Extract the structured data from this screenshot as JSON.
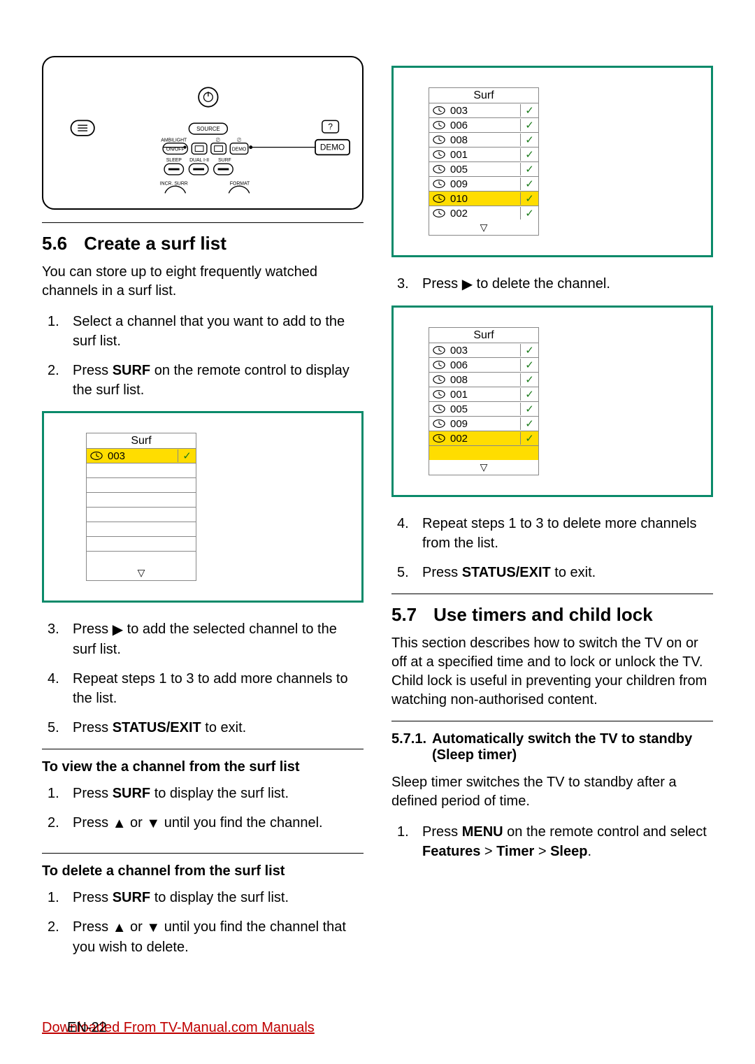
{
  "remote": {
    "labels": {
      "source": "SOURCE",
      "demo_big": "DEMO",
      "ambilight": "AMBILIGHT",
      "onoff": "ON/OFF",
      "demo": "DEMO",
      "sleep": "SLEEP",
      "dual": "DUAL I-II",
      "surf": "SURF",
      "incr": "INCR. SURR",
      "format": "FORMAT"
    }
  },
  "left": {
    "s56_num": "5.6",
    "s56_title": "Create a surf list",
    "s56_intro": "You can store up to eight frequently watched channels in a surf list.",
    "s56_steps1": {
      "1": "Select a channel that you want to add to the surf list.",
      "2a": "Press ",
      "2b": "SURF",
      "2c": " on the remote control to display the surf list."
    },
    "s56_steps2": {
      "3a": "Press ",
      "3b": " to add the selected channel to the surf list.",
      "4": "Repeat steps 1 to 3 to add more channels to the list.",
      "5a": "Press ",
      "5b": "STATUS/EXIT",
      "5c": " to exit."
    },
    "view_heading": "To view the a channel from the surf list",
    "view_steps": {
      "1a": "Press ",
      "1b": "SURF",
      "1c": " to display the surf list.",
      "2a": "Press ",
      "2b": " or ",
      "2c": " until you find the channel."
    },
    "delete_heading": "To delete a channel from the surf list",
    "delete_steps": {
      "1a": "Press ",
      "1b": "SURF",
      "1c": " to display the surf list.",
      "2a": "Press ",
      "2b": " or ",
      "2c": " until you find the channel that you wish to delete."
    },
    "surf_figure1": {
      "header": "Surf",
      "rows": [
        {
          "ch": "003",
          "check": true,
          "highlight": true
        },
        {
          "empty": true
        },
        {
          "empty": true
        },
        {
          "empty": true
        },
        {
          "empty": true
        },
        {
          "empty": true
        },
        {
          "empty": true
        },
        {
          "empty": true
        }
      ]
    }
  },
  "right": {
    "surf_figure2": {
      "header": "Surf",
      "rows": [
        {
          "ch": "003",
          "check": true
        },
        {
          "ch": "006",
          "check": true
        },
        {
          "ch": "008",
          "check": true
        },
        {
          "ch": "001",
          "check": true
        },
        {
          "ch": "005",
          "check": true
        },
        {
          "ch": "009",
          "check": true
        },
        {
          "ch": "010",
          "check": true,
          "highlight": true
        },
        {
          "ch": "002",
          "check": true
        }
      ]
    },
    "step3a": "Press ",
    "step3b": " to delete the channel.",
    "surf_figure3": {
      "header": "Surf",
      "rows": [
        {
          "ch": "003",
          "check": true
        },
        {
          "ch": "006",
          "check": true
        },
        {
          "ch": "008",
          "check": true
        },
        {
          "ch": "001",
          "check": true
        },
        {
          "ch": "005",
          "check": true
        },
        {
          "ch": "009",
          "check": true
        },
        {
          "ch": "002",
          "check": true,
          "highlight": true
        },
        {
          "empty": true,
          "highlight": true
        }
      ]
    },
    "step4": "Repeat steps 1 to 3 to delete more channels from the list.",
    "step5a": "Press ",
    "step5b": "STATUS/EXIT",
    "step5c": " to exit.",
    "s57_num": "5.7",
    "s57_title": "Use timers and child lock",
    "s57_intro": "This section describes how to switch the TV on or off at a specified time and to lock or unlock the TV. Child lock is useful in preventing your children from watching non-authorised content.",
    "s571_num": "5.7.1.",
    "s571_title": "Automatically switch the TV to standby (Sleep timer)",
    "s571_intro": "Sleep timer switches the TV to standby after a defined period of time.",
    "s571_step1a": "Press ",
    "s571_step1b": "MENU",
    "s571_step1c": " on the remote control and select ",
    "s571_step1d": "Features",
    "s571_step1e": " > ",
    "s571_step1f": "Timer",
    "s571_step1g": " > ",
    "s571_step1h": "Sleep",
    "s571_step1i": "."
  },
  "glyphs": {
    "right_tri": "▶",
    "up_tri": "▲",
    "down_tri": "▼",
    "down_tri_open": "▽",
    "check": "✓"
  },
  "footer": {
    "download": "Downloaded From TV-Manual.com Manuals",
    "page": "EN-22"
  },
  "colors": {
    "figure_border": "#0a8a6a",
    "highlight": "#ffdd00",
    "check": "#1a7a1a",
    "download_link": "#c00000"
  }
}
